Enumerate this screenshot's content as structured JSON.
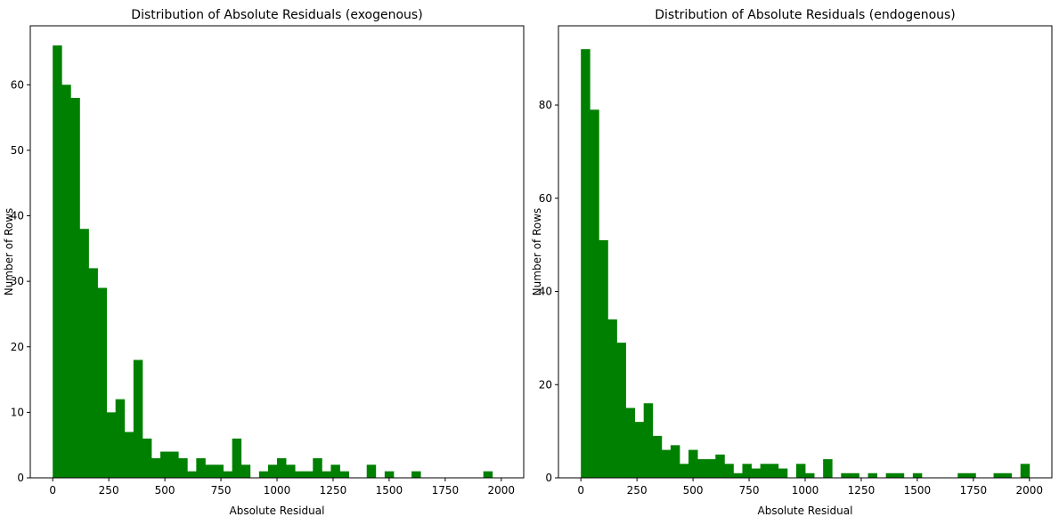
{
  "chart_data": [
    {
      "type": "bar",
      "title": "Distribution of Absolute Residuals (exogenous)",
      "xlabel": "Absolute Residual",
      "ylabel": "Number of Rows",
      "xlim": [
        -100,
        2100
      ],
      "ylim": [
        0,
        69
      ],
      "xticks": [
        0,
        250,
        500,
        750,
        1000,
        1250,
        1500,
        1750,
        2000
      ],
      "yticks": [
        0,
        10,
        20,
        30,
        40,
        50,
        60
      ],
      "bin_start": 0,
      "bin_width": 40,
      "color": "#008000",
      "values": [
        66,
        60,
        58,
        38,
        32,
        29,
        10,
        12,
        7,
        18,
        6,
        3,
        4,
        4,
        3,
        1,
        3,
        2,
        2,
        1,
        6,
        2,
        0,
        1,
        2,
        3,
        2,
        1,
        1,
        3,
        1,
        2,
        1,
        0,
        0,
        2,
        0,
        1,
        0,
        0,
        1,
        0,
        0,
        0,
        0,
        0,
        0,
        0,
        1,
        0
      ]
    },
    {
      "type": "bar",
      "title": "Distribution of Absolute Residuals (endogenous)",
      "xlabel": "Absolute Residual",
      "ylabel": "Number of Rows",
      "xlim": [
        -100,
        2100
      ],
      "ylim": [
        0,
        97
      ],
      "xticks": [
        0,
        250,
        500,
        750,
        1000,
        1250,
        1500,
        1750,
        2000
      ],
      "yticks": [
        0,
        20,
        40,
        60,
        80
      ],
      "bin_start": 0,
      "bin_width": 40,
      "color": "#008000",
      "values": [
        92,
        79,
        51,
        34,
        29,
        15,
        12,
        16,
        9,
        6,
        7,
        3,
        6,
        4,
        4,
        5,
        3,
        1,
        3,
        2,
        3,
        3,
        2,
        0,
        3,
        1,
        0,
        4,
        0,
        1,
        1,
        0,
        1,
        0,
        1,
        1,
        0,
        1,
        0,
        0,
        0,
        0,
        1,
        1,
        0,
        0,
        1,
        1,
        0,
        3
      ]
    }
  ]
}
